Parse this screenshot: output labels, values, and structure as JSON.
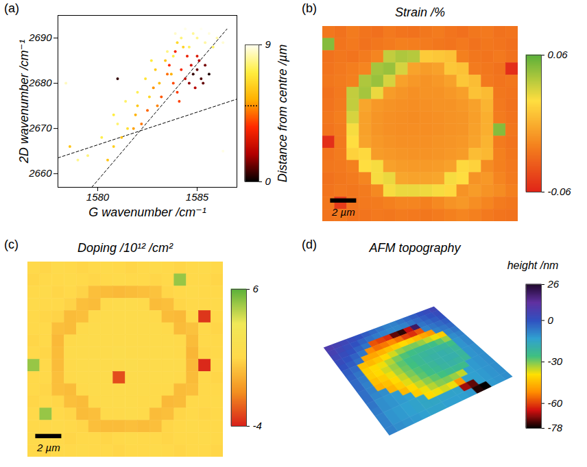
{
  "chart_data": [
    {
      "panel": "(a)",
      "type": "scatter",
      "x_label": "G wavenumber /cm⁻¹",
      "y_label": "2D wavenumber /cm⁻¹",
      "xlim": [
        1578,
        1587
      ],
      "xticks": [
        1580,
        1585
      ],
      "ylim": [
        2657,
        2695
      ],
      "yticks": [
        2660,
        2670,
        2680,
        2690
      ],
      "marker": "circle",
      "x": [
        1584.8,
        1585.0,
        1585.2,
        1584.6,
        1585.4,
        1584.9,
        1585.1,
        1584.4,
        1585.6,
        1584.7,
        1585.3,
        1585.0,
        1584.2,
        1583.8,
        1584.0,
        1583.5,
        1583.2,
        1584.5,
        1583.0,
        1582.8,
        1583.6,
        1582.5,
        1584.1,
        1582.2,
        1581.8,
        1583.9,
        1583.4,
        1582.9,
        1583.1,
        1582.6,
        1582.0,
        1581.5,
        1581.2,
        1580.8,
        1584.0,
        1582.4,
        1581.9,
        1580.5,
        1583.7,
        1584.3,
        1584.6,
        1585.0,
        1584.2,
        1583.8,
        1585.4,
        1585.8,
        1583.5,
        1586.0,
        1582.7,
        1584.8,
        1582.0,
        1581.0,
        1580.2,
        1579.5,
        1579.0,
        1580.8,
        1581.4,
        1585.6,
        1584.4,
        1586.3,
        1583.9,
        1585.2,
        1578.4,
        1586.3,
        1581.0,
        1578.6
      ],
      "y": [
        2682,
        2683,
        2681,
        2680,
        2684,
        2679,
        2685,
        2681,
        2682,
        2684,
        2680,
        2686,
        2683,
        2680,
        2678,
        2682,
        2677,
        2686,
        2675,
        2679,
        2684,
        2674,
        2676,
        2671,
        2670,
        2687,
        2685,
        2683,
        2680,
        2677,
        2675,
        2670,
        2668,
        2666,
        2689,
        2681,
        2673,
        2663,
        2682,
        2688,
        2688,
        2690,
        2690,
        2686,
        2689,
        2688,
        2687,
        2690,
        2685,
        2691,
        2678,
        2671,
        2668,
        2664,
        2663,
        2673,
        2676,
        2691,
        2692,
        2689,
        2691,
        2692,
        2680,
        2665,
        2681,
        2666
      ],
      "distance": [
        0.5,
        1,
        0.8,
        1.5,
        1.2,
        2,
        1.8,
        2.2,
        0.3,
        2.5,
        1.0,
        2.8,
        3.5,
        4,
        3.8,
        4.5,
        4.2,
        3.2,
        4.8,
        5,
        3.6,
        4.4,
        3.9,
        4.6,
        5.2,
        3.4,
        6,
        6.2,
        5.8,
        6.5,
        6.1,
        6.8,
        5.9,
        6.3,
        6.6,
        6.9,
        5.5,
        6,
        5.4,
        6.4,
        7.5,
        8,
        7.8,
        7.2,
        8.2,
        7.6,
        7.9,
        8.3,
        7.1,
        8.1,
        7.4,
        7.7,
        7.3,
        7.8,
        8,
        7.2,
        7.6,
        8.8,
        8.9,
        8.7,
        8.6,
        9,
        8.5,
        8.9,
        0.5,
        6
      ],
      "lines": [
        {
          "x": [
            1579.7,
            1586.5
          ],
          "y": [
            2657,
            2692
          ],
          "line_style": "dashed"
        },
        {
          "x": [
            1578,
            1587
          ],
          "y": [
            2663.5,
            2676.5
          ],
          "line_style": "dashed"
        }
      ],
      "colorbar": {
        "label": "Distance from centre /µm",
        "range": [
          0,
          9
        ],
        "ticks": [
          0,
          9
        ],
        "colors": [
          "#000000",
          "#b00000",
          "#ff2a00",
          "#ffb000",
          "#ffee40",
          "#fffff0"
        ],
        "reference": {
          "value": 5,
          "line_style": "dotted"
        }
      }
    },
    {
      "panel": "(b)",
      "type": "heatmap",
      "title": "Strain /%",
      "tick_labels": false,
      "xlim": [
        0,
        15
      ],
      "ylim": [
        0,
        15
      ],
      "cells": [
        [
          -0.024,
          -0.026,
          -0.022,
          -0.025,
          -0.027,
          -0.023,
          -0.025,
          -0.026,
          -0.024,
          -0.022,
          -0.025,
          -0.027,
          -0.024,
          -0.023,
          -0.026,
          -0.025
        ],
        [
          0.05,
          -0.025,
          -0.023,
          -0.026,
          -0.024,
          -0.022,
          -0.02,
          -0.021,
          -0.022,
          -0.024,
          -0.025,
          -0.023,
          -0.026,
          -0.024,
          -0.025,
          -0.027
        ],
        [
          -0.026,
          -0.024,
          -0.025,
          -0.022,
          -0.018,
          0.035,
          0.04,
          0.038,
          0.012,
          0.01,
          0.008,
          -0.02,
          -0.024,
          -0.025,
          -0.023,
          -0.026
        ],
        [
          -0.025,
          -0.023,
          -0.021,
          -0.018,
          0.042,
          0.045,
          0.03,
          -0.005,
          -0.008,
          -0.006,
          0.01,
          0.008,
          -0.022,
          -0.024,
          -0.026,
          -0.055
        ],
        [
          -0.024,
          -0.022,
          -0.02,
          0.04,
          0.045,
          0.03,
          -0.006,
          -0.01,
          -0.012,
          -0.01,
          -0.006,
          0.01,
          0.006,
          -0.023,
          -0.025,
          -0.024
        ],
        [
          -0.026,
          -0.023,
          0.035,
          0.042,
          0.025,
          -0.008,
          -0.011,
          -0.013,
          -0.012,
          -0.012,
          -0.01,
          -0.007,
          0.008,
          0.005,
          -0.024,
          -0.025
        ],
        [
          -0.025,
          -0.022,
          0.035,
          -0.004,
          -0.01,
          -0.012,
          -0.013,
          -0.014,
          -0.013,
          -0.012,
          -0.012,
          -0.01,
          -0.006,
          0.002,
          -0.023,
          -0.026
        ],
        [
          -0.024,
          -0.021,
          0.03,
          -0.006,
          -0.011,
          -0.013,
          -0.014,
          -0.015,
          -0.014,
          -0.013,
          -0.012,
          -0.011,
          -0.007,
          0.0,
          -0.022,
          -0.025
        ],
        [
          -0.025,
          -0.022,
          0.022,
          -0.006,
          -0.011,
          -0.013,
          -0.014,
          -0.014,
          -0.014,
          -0.013,
          -0.012,
          -0.011,
          -0.006,
          0.0,
          0.05,
          -0.024
        ],
        [
          -0.055,
          -0.023,
          0.02,
          -0.005,
          -0.01,
          -0.012,
          -0.013,
          -0.013,
          -0.013,
          -0.012,
          -0.011,
          -0.01,
          -0.005,
          0.002,
          -0.022,
          -0.025
        ],
        [
          -0.025,
          -0.022,
          0.015,
          0.018,
          -0.008,
          -0.01,
          -0.011,
          -0.012,
          -0.012,
          -0.011,
          -0.01,
          -0.008,
          0.006,
          0.004,
          -0.02,
          -0.024
        ],
        [
          -0.024,
          -0.023,
          -0.02,
          0.02,
          0.022,
          -0.006,
          -0.008,
          -0.009,
          -0.009,
          -0.008,
          -0.006,
          0.018,
          0.015,
          -0.015,
          -0.02,
          -0.023
        ],
        [
          -0.026,
          -0.024,
          -0.022,
          -0.018,
          0.022,
          0.025,
          -0.004,
          -0.005,
          -0.005,
          -0.004,
          0.022,
          0.02,
          -0.012,
          -0.01,
          -0.018,
          -0.022
        ],
        [
          -0.025,
          -0.023,
          -0.024,
          -0.022,
          -0.016,
          0.022,
          0.025,
          0.025,
          0.024,
          0.022,
          0.018,
          -0.012,
          -0.008,
          -0.012,
          -0.015,
          -0.02
        ],
        [
          -0.024,
          -0.05,
          -0.025,
          -0.023,
          -0.022,
          -0.02,
          -0.018,
          -0.018,
          -0.02,
          -0.016,
          -0.012,
          -0.01,
          -0.014,
          -0.018,
          -0.022,
          -0.024
        ],
        [
          -0.025,
          -0.024,
          -0.026,
          -0.025,
          -0.023,
          -0.024,
          -0.022,
          -0.023,
          -0.024,
          -0.022,
          -0.02,
          -0.018,
          -0.02,
          -0.023,
          -0.025,
          -0.026
        ]
      ],
      "colorbar": {
        "range": [
          -0.06,
          0.06
        ],
        "ticks": [
          -0.06,
          0.06
        ],
        "colors": [
          "#e02418",
          "#f4801e",
          "#ffde40",
          "#5cb03a"
        ]
      },
      "scale_bar": {
        "length": 2,
        "label": "2 µm"
      }
    },
    {
      "panel": "(c)",
      "type": "heatmap",
      "title": "Doping /10¹² /cm²",
      "tick_labels": false,
      "xlim": [
        0,
        15
      ],
      "ylim": [
        0,
        15
      ],
      "cells": [
        [
          1.0,
          0.9,
          1.1,
          1.0,
          0.9,
          1.0,
          1.1,
          1.0,
          0.9,
          1.0,
          1.1,
          1.0,
          0.9,
          1.0,
          1.1,
          1.0
        ],
        [
          0.9,
          1.0,
          1.0,
          1.1,
          1.0,
          0.9,
          1.0,
          1.1,
          1.0,
          1.0,
          0.9,
          1.0,
          5.0,
          1.0,
          1.0,
          0.9
        ],
        [
          1.0,
          1.1,
          0.9,
          1.0,
          0.8,
          0.1,
          0.0,
          -0.1,
          0.0,
          0.1,
          0.2,
          0.9,
          1.0,
          1.1,
          1.0,
          1.0
        ],
        [
          1.1,
          1.0,
          1.0,
          0.8,
          0.1,
          0.0,
          1.2,
          1.3,
          1.3,
          1.2,
          0.0,
          0.1,
          0.9,
          1.0,
          1.0,
          1.1
        ],
        [
          1.0,
          0.9,
          0.8,
          0.0,
          0.1,
          1.2,
          1.3,
          1.4,
          1.3,
          1.3,
          1.2,
          0.0,
          -0.1,
          1.0,
          -3.5,
          1.0
        ],
        [
          1.0,
          1.0,
          0.1,
          0.0,
          1.2,
          1.3,
          1.4,
          1.3,
          1.4,
          1.3,
          1.3,
          1.2,
          0.0,
          0.2,
          1.0,
          0.9
        ],
        [
          0.9,
          1.0,
          -0.1,
          1.2,
          1.3,
          1.4,
          1.3,
          1.4,
          1.4,
          1.3,
          1.4,
          1.3,
          1.2,
          0.0,
          1.0,
          1.0
        ],
        [
          1.0,
          0.9,
          0.0,
          1.3,
          1.3,
          1.4,
          1.4,
          1.5,
          1.4,
          1.4,
          1.3,
          1.3,
          1.2,
          -0.2,
          0.9,
          1.0
        ],
        [
          5.0,
          1.0,
          0.0,
          1.2,
          1.3,
          1.4,
          1.4,
          1.4,
          1.5,
          1.4,
          1.3,
          1.3,
          1.3,
          -0.1,
          -3.8,
          1.0
        ],
        [
          1.0,
          1.0,
          0.1,
          1.2,
          1.3,
          1.3,
          1.4,
          -3.0,
          1.4,
          1.3,
          1.3,
          1.3,
          1.2,
          0.0,
          1.0,
          0.9
        ],
        [
          1.0,
          0.9,
          0.1,
          0.0,
          1.2,
          1.3,
          1.3,
          1.4,
          1.3,
          1.3,
          1.2,
          1.2,
          0.0,
          0.1,
          1.0,
          1.0
        ],
        [
          0.9,
          1.0,
          0.9,
          0.1,
          0.0,
          1.2,
          1.3,
          1.3,
          1.3,
          1.2,
          1.2,
          -0.1,
          0.0,
          1.0,
          1.0,
          1.1
        ],
        [
          1.0,
          5.0,
          1.0,
          0.9,
          0.0,
          0.1,
          1.2,
          1.2,
          1.3,
          1.2,
          0.0,
          0.1,
          0.9,
          1.0,
          0.9,
          1.0
        ],
        [
          1.0,
          1.0,
          1.1,
          1.0,
          0.9,
          0.1,
          0.0,
          0.0,
          0.1,
          0.0,
          0.1,
          0.9,
          1.0,
          1.1,
          1.0,
          1.0
        ],
        [
          1.1,
          1.0,
          1.0,
          0.9,
          1.0,
          1.0,
          0.9,
          1.0,
          1.1,
          1.0,
          1.0,
          0.9,
          1.0,
          1.0,
          1.1,
          1.0
        ],
        [
          1.0,
          0.9,
          1.0,
          1.0,
          1.1,
          1.0,
          1.0,
          0.9,
          1.0,
          1.0,
          1.1,
          1.0,
          0.9,
          1.0,
          1.0,
          0.9
        ]
      ],
      "colorbar": {
        "range": [
          -4,
          6
        ],
        "ticks": [
          -4,
          6
        ],
        "colors": [
          "#d8201a",
          "#f39020",
          "#ffd94a",
          "#f0e858",
          "#5cb03a"
        ]
      },
      "scale_bar": {
        "length": 2,
        "label": "2 µm"
      }
    },
    {
      "panel": "(d)",
      "type": "surface",
      "title": "AFM topography",
      "tick_labels": false,
      "cells": [
        [
          8,
          6,
          4,
          2,
          0,
          -2,
          -4,
          -6,
          -8,
          -8,
          -6,
          -4,
          -2,
          0,
          2,
          4
        ],
        [
          6,
          4,
          2,
          0,
          -3,
          -5,
          -7,
          -8,
          -9,
          -9,
          -8,
          -6,
          -4,
          -2,
          0,
          2
        ],
        [
          4,
          2,
          0,
          -3,
          -6,
          -58,
          -60,
          -62,
          -72,
          -75,
          -66,
          20,
          -6,
          -4,
          -2,
          0
        ],
        [
          2,
          0,
          -3,
          -6,
          -52,
          -55,
          -54,
          -52,
          -55,
          -60,
          -62,
          -58,
          -8,
          -6,
          -4,
          -2
        ],
        [
          0,
          -2,
          -5,
          -48,
          -48,
          -46,
          -44,
          -42,
          -40,
          -42,
          -45,
          -48,
          -50,
          -8,
          -6,
          -4
        ],
        [
          -2,
          -4,
          -44,
          -45,
          -43,
          -40,
          -36,
          -32,
          -30,
          -30,
          -32,
          -35,
          -38,
          -42,
          -8,
          -6
        ],
        [
          -3,
          -6,
          -42,
          -40,
          -38,
          -34,
          -30,
          -27,
          -25,
          -24,
          -24,
          -25,
          -28,
          -32,
          -10,
          -8
        ],
        [
          -4,
          -7,
          -42,
          -40,
          -36,
          -32,
          -28,
          -25,
          -23,
          -22,
          -21,
          -21,
          -22,
          -25,
          -11,
          -9
        ],
        [
          -4,
          -8,
          -44,
          -42,
          -38,
          -33,
          -29,
          -26,
          -23,
          -21,
          -20,
          -19,
          -20,
          -22,
          -11,
          -9
        ],
        [
          -5,
          -8,
          -46,
          -44,
          -40,
          -35,
          -30,
          -27,
          -24,
          -22,
          -20,
          -19,
          -19,
          -21,
          -11,
          -10
        ],
        [
          -5,
          -9,
          -10,
          -46,
          -42,
          -37,
          -32,
          -28,
          -25,
          -23,
          -21,
          -20,
          -21,
          -22,
          -11,
          -10
        ],
        [
          -6,
          -10,
          -11,
          -12,
          -45,
          -40,
          -35,
          -31,
          -28,
          -26,
          -24,
          -23,
          -24,
          -12,
          -11,
          -10
        ],
        [
          -7,
          -10,
          -11,
          -12,
          -13,
          -42,
          -38,
          -34,
          -31,
          -30,
          -32,
          -35,
          -13,
          -12,
          -11,
          -10
        ],
        [
          -8,
          -11,
          -12,
          -13,
          -14,
          -15,
          -40,
          -38,
          -36,
          -38,
          -50,
          -14,
          -13,
          -12,
          -11,
          -10
        ],
        [
          -8,
          -11,
          -12,
          -13,
          -14,
          -15,
          -15,
          -14,
          -14,
          -14,
          -68,
          -72,
          -13,
          -12,
          -11,
          -10
        ],
        [
          -8,
          -10,
          -11,
          -12,
          -13,
          -14,
          -14,
          -13,
          -13,
          -13,
          -12,
          -76,
          -78,
          -12,
          -11,
          -10
        ]
      ],
      "colorbar": {
        "label": "height /nm",
        "range": [
          -78,
          26
        ],
        "ticks": [
          26,
          0,
          -30,
          -60,
          -78
        ],
        "colors": [
          "#000000",
          "#d01010",
          "#ff8c00",
          "#ffe000",
          "#40c080",
          "#30a0d0",
          "#3050c0",
          "#6030a0",
          "#200830"
        ]
      }
    }
  ]
}
